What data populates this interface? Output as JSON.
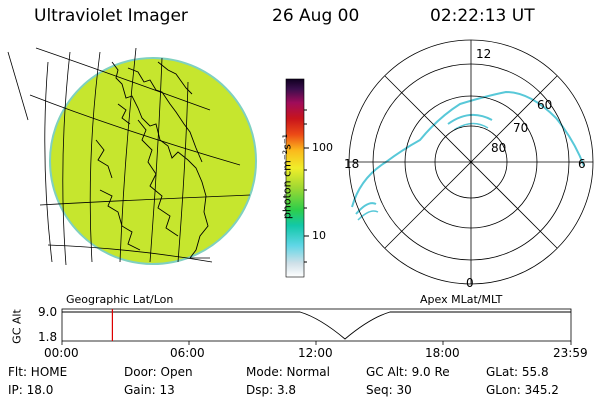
{
  "header": {
    "title": "Ultraviolet Imager",
    "date": "26 Aug 00",
    "time": "02:22:13 UT"
  },
  "left_panel": {
    "label": "Geographic Lat/Lon"
  },
  "colorbar": {
    "unit_label": "photon cm⁻²s⁻¹",
    "tick_high": "100",
    "tick_low": "10",
    "scale": "log"
  },
  "right_panel": {
    "label": "Apex MLat/MLT",
    "mlt_labels": {
      "top": "12",
      "left": "18",
      "right": "6",
      "bottom": "0"
    },
    "lat_labels": [
      "60",
      "70",
      "80"
    ]
  },
  "timeline": {
    "axis_label": "GC Alt",
    "y_ticks": [
      "9.0",
      "1.8"
    ],
    "x_ticks": [
      "00:00",
      "06:00",
      "12:00",
      "18:00",
      "23:59"
    ],
    "marker_time_fraction": 0.099
  },
  "info": {
    "flt": "Flt: HOME",
    "door": "Door: Open",
    "mode": "Mode: Normal",
    "gc_alt": "GC Alt: 9.0 Re",
    "glat": "GLat:  55.8",
    "ip": "IP: 18.0",
    "gain": "Gain: 13",
    "dsp": "Dsp:     3.8",
    "seq": "Seq: 30",
    "glon": "GLon: 345.2"
  },
  "colors": {
    "image_fill": "#c6e62e",
    "map_lines": "#000000",
    "marker": "#dd0000"
  }
}
